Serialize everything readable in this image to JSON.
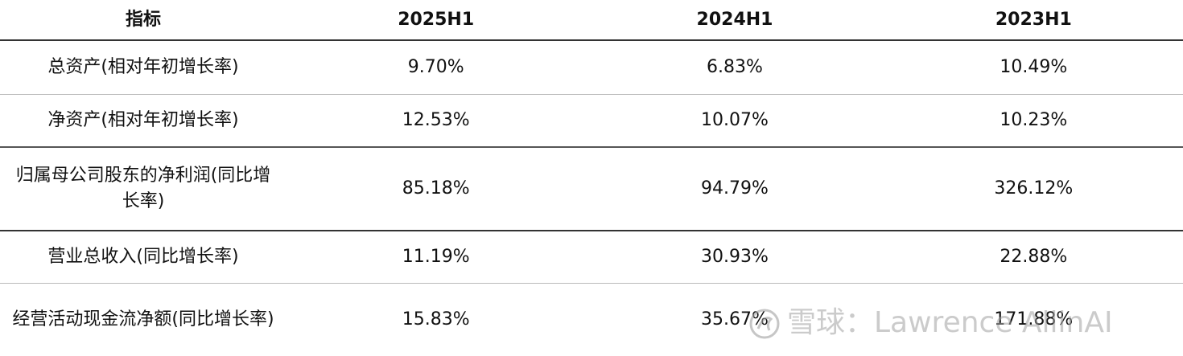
{
  "table": {
    "header": [
      "指标",
      "2025H1",
      "2024H1",
      "2023H1"
    ],
    "rows": [
      [
        "总资产(相对年初增长率)",
        "9.70%",
        "6.83%",
        "10.49%"
      ],
      [
        "净资产(相对年初增长率)",
        "12.53%",
        "10.07%",
        "10.23%"
      ],
      [
        "归属母公司股东的净利润(同比增长率)",
        "85.18%",
        "94.79%",
        "326.12%"
      ],
      [
        "营业总收入(同比增长率)",
        "11.19%",
        "30.93%",
        "22.88%"
      ],
      [
        "经营活动现金流净额(同比增长率)",
        "15.83%",
        "35.67%",
        "171.88%"
      ]
    ]
  },
  "watermark": "雪球：Lawrence AllinAI"
}
